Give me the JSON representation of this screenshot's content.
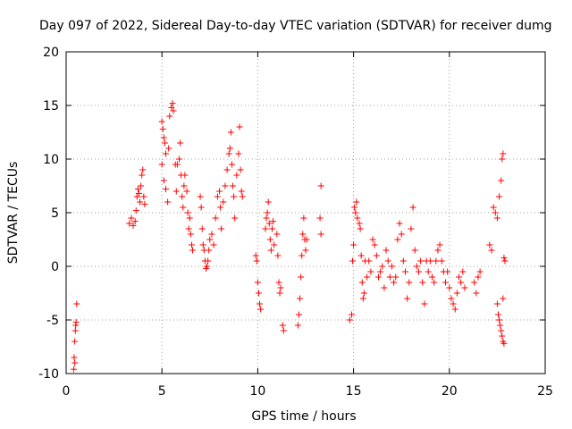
{
  "chart_data": {
    "type": "scatter",
    "title": "Day 097 of 2022, Sidereal Day-to-day VTEC variation (SDTVAR) for receiver dumg",
    "xlabel": "GPS time / hours",
    "ylabel": "SDTVAR / TECUs",
    "xlim": [
      0,
      25
    ],
    "ylim": [
      -10,
      20
    ],
    "xticks": [
      0,
      5,
      10,
      15,
      20,
      25
    ],
    "yticks": [
      -10,
      -5,
      0,
      5,
      10,
      15,
      20
    ],
    "xtick_labels": [
      "0",
      "5",
      "10",
      "15",
      "20",
      "25"
    ],
    "ytick_labels": [
      "-10",
      "-5",
      "0",
      "5",
      "10",
      "15",
      "20"
    ],
    "grid": true,
    "legend": "none",
    "marker": "plus",
    "color": "#ff0000",
    "series": [
      {
        "name": "SDTVAR",
        "points": [
          [
            0.4,
            -9.6
          ],
          [
            0.42,
            -8.5
          ],
          [
            0.45,
            -7.0
          ],
          [
            0.48,
            -6.0
          ],
          [
            0.5,
            -5.5
          ],
          [
            0.52,
            -5.2
          ],
          [
            0.55,
            -3.5
          ],
          [
            0.45,
            -9.0
          ],
          [
            3.3,
            4.0
          ],
          [
            3.4,
            4.5
          ],
          [
            3.5,
            3.8
          ],
          [
            3.6,
            4.2
          ],
          [
            3.65,
            5.2
          ],
          [
            3.7,
            6.5
          ],
          [
            3.75,
            7.2
          ],
          [
            3.8,
            6.8
          ],
          [
            3.85,
            6.0
          ],
          [
            3.9,
            7.5
          ],
          [
            3.95,
            8.5
          ],
          [
            4.0,
            9.0
          ],
          [
            4.05,
            6.5
          ],
          [
            4.1,
            5.8
          ],
          [
            5.0,
            13.5
          ],
          [
            5.05,
            12.8
          ],
          [
            5.1,
            12.0
          ],
          [
            5.15,
            11.5
          ],
          [
            5.2,
            10.5
          ],
          [
            5.0,
            9.5
          ],
          [
            5.1,
            8.0
          ],
          [
            5.2,
            7.2
          ],
          [
            5.3,
            6.0
          ],
          [
            5.35,
            11.0
          ],
          [
            5.4,
            14.0
          ],
          [
            5.5,
            14.8
          ],
          [
            5.55,
            15.2
          ],
          [
            5.6,
            14.5
          ],
          [
            5.7,
            9.5
          ],
          [
            5.75,
            7.0
          ],
          [
            5.8,
            9.5
          ],
          [
            5.9,
            10.0
          ],
          [
            5.95,
            11.5
          ],
          [
            6.0,
            8.5
          ],
          [
            6.05,
            6.5
          ],
          [
            6.1,
            5.5
          ],
          [
            6.15,
            7.5
          ],
          [
            6.2,
            8.5
          ],
          [
            6.3,
            7.0
          ],
          [
            6.35,
            5.0
          ],
          [
            6.4,
            3.5
          ],
          [
            6.45,
            4.5
          ],
          [
            6.5,
            3.0
          ],
          [
            6.55,
            2.0
          ],
          [
            6.6,
            1.5
          ],
          [
            7.0,
            6.5
          ],
          [
            7.05,
            5.5
          ],
          [
            7.1,
            3.5
          ],
          [
            7.15,
            2.0
          ],
          [
            7.2,
            1.5
          ],
          [
            7.25,
            0.5
          ],
          [
            7.3,
            -0.2
          ],
          [
            7.35,
            0.0
          ],
          [
            7.4,
            0.5
          ],
          [
            7.45,
            1.5
          ],
          [
            7.5,
            2.5
          ],
          [
            7.6,
            3.0
          ],
          [
            7.7,
            2.0
          ],
          [
            7.8,
            4.5
          ],
          [
            7.9,
            6.5
          ],
          [
            8.0,
            7.0
          ],
          [
            8.05,
            5.5
          ],
          [
            8.1,
            3.5
          ],
          [
            8.2,
            6.0
          ],
          [
            8.3,
            7.5
          ],
          [
            8.4,
            9.0
          ],
          [
            8.5,
            10.5
          ],
          [
            8.55,
            11.0
          ],
          [
            8.6,
            12.5
          ],
          [
            8.65,
            9.5
          ],
          [
            8.7,
            7.5
          ],
          [
            8.75,
            6.5
          ],
          [
            8.8,
            4.5
          ],
          [
            8.9,
            8.5
          ],
          [
            9.0,
            10.5
          ],
          [
            9.05,
            13.0
          ],
          [
            9.1,
            9.0
          ],
          [
            9.15,
            7.0
          ],
          [
            9.2,
            6.5
          ],
          [
            9.9,
            1.0
          ],
          [
            9.95,
            0.5
          ],
          [
            10.0,
            -1.5
          ],
          [
            10.05,
            -2.5
          ],
          [
            10.1,
            -3.5
          ],
          [
            10.15,
            -4.0
          ],
          [
            10.4,
            3.5
          ],
          [
            10.45,
            4.5
          ],
          [
            10.5,
            5.0
          ],
          [
            10.55,
            6.0
          ],
          [
            10.6,
            4.0
          ],
          [
            10.65,
            2.5
          ],
          [
            10.7,
            1.5
          ],
          [
            10.75,
            3.5
          ],
          [
            10.8,
            4.2
          ],
          [
            10.85,
            2.0
          ],
          [
            11.0,
            3.0
          ],
          [
            11.05,
            1.0
          ],
          [
            11.1,
            -1.5
          ],
          [
            11.15,
            -2.5
          ],
          [
            11.2,
            -2.0
          ],
          [
            11.3,
            -5.5
          ],
          [
            11.35,
            -6.0
          ],
          [
            12.1,
            -5.5
          ],
          [
            12.15,
            -4.5
          ],
          [
            12.2,
            -3.0
          ],
          [
            12.25,
            -1.0
          ],
          [
            12.3,
            1.0
          ],
          [
            12.35,
            3.0
          ],
          [
            12.4,
            4.5
          ],
          [
            12.45,
            2.5
          ],
          [
            12.5,
            1.5
          ],
          [
            12.55,
            2.5
          ],
          [
            13.3,
            7.5
          ],
          [
            13.25,
            4.5
          ],
          [
            13.3,
            3.0
          ],
          [
            14.8,
            -5.0
          ],
          [
            14.9,
            -4.5
          ],
          [
            14.95,
            0.5
          ],
          [
            15.0,
            2.0
          ],
          [
            15.05,
            5.5
          ],
          [
            15.1,
            5.0
          ],
          [
            15.15,
            6.0
          ],
          [
            15.2,
            4.5
          ],
          [
            15.3,
            4.0
          ],
          [
            15.35,
            3.5
          ],
          [
            15.4,
            1.0
          ],
          [
            15.45,
            -1.5
          ],
          [
            15.5,
            -3.0
          ],
          [
            15.55,
            -2.5
          ],
          [
            15.6,
            0.5
          ],
          [
            15.7,
            -1.0
          ],
          [
            15.8,
            0.5
          ],
          [
            15.9,
            -0.5
          ],
          [
            16.0,
            2.5
          ],
          [
            16.1,
            2.0
          ],
          [
            16.2,
            1.0
          ],
          [
            16.3,
            -1.0
          ],
          [
            16.4,
            -0.5
          ],
          [
            16.5,
            0.0
          ],
          [
            16.6,
            -2.0
          ],
          [
            16.7,
            1.5
          ],
          [
            16.8,
            0.5
          ],
          [
            16.9,
            -1.0
          ],
          [
            17.0,
            0.0
          ],
          [
            17.1,
            -1.5
          ],
          [
            17.2,
            -1.0
          ],
          [
            17.3,
            2.5
          ],
          [
            17.4,
            4.0
          ],
          [
            17.5,
            3.0
          ],
          [
            17.6,
            0.5
          ],
          [
            17.7,
            -0.5
          ],
          [
            17.8,
            -3.0
          ],
          [
            17.9,
            -1.5
          ],
          [
            18.0,
            3.5
          ],
          [
            18.1,
            5.5
          ],
          [
            18.2,
            1.5
          ],
          [
            18.3,
            0.0
          ],
          [
            18.4,
            -0.5
          ],
          [
            18.5,
            0.5
          ],
          [
            18.6,
            -1.5
          ],
          [
            18.7,
            -3.5
          ],
          [
            18.8,
            0.5
          ],
          [
            18.9,
            -0.5
          ],
          [
            19.0,
            0.5
          ],
          [
            19.1,
            -1.0
          ],
          [
            19.2,
            -1.5
          ],
          [
            19.3,
            0.5
          ],
          [
            19.4,
            1.5
          ],
          [
            19.5,
            2.0
          ],
          [
            19.6,
            0.5
          ],
          [
            19.7,
            -0.5
          ],
          [
            19.8,
            -1.5
          ],
          [
            19.9,
            -0.5
          ],
          [
            20.0,
            -2.0
          ],
          [
            20.1,
            -3.0
          ],
          [
            20.2,
            -3.5
          ],
          [
            20.3,
            -4.0
          ],
          [
            20.4,
            -2.5
          ],
          [
            20.5,
            -1.0
          ],
          [
            20.6,
            -1.5
          ],
          [
            20.7,
            -0.5
          ],
          [
            20.8,
            -2.0
          ],
          [
            21.3,
            -1.5
          ],
          [
            21.4,
            -2.5
          ],
          [
            21.5,
            -1.0
          ],
          [
            21.6,
            -0.5
          ],
          [
            22.1,
            2.0
          ],
          [
            22.2,
            1.5
          ],
          [
            22.3,
            5.5
          ],
          [
            22.4,
            5.0
          ],
          [
            22.5,
            4.5
          ],
          [
            22.6,
            6.5
          ],
          [
            22.7,
            8.0
          ],
          [
            22.75,
            10.0
          ],
          [
            22.8,
            10.5
          ],
          [
            22.5,
            -3.5
          ],
          [
            22.55,
            -4.5
          ],
          [
            22.6,
            -5.0
          ],
          [
            22.65,
            -5.5
          ],
          [
            22.7,
            -6.0
          ],
          [
            22.75,
            -6.5
          ],
          [
            22.8,
            -7.0
          ],
          [
            22.85,
            -7.2
          ],
          [
            22.8,
            -3.0
          ],
          [
            22.85,
            0.8
          ],
          [
            22.9,
            0.5
          ]
        ]
      }
    ]
  }
}
